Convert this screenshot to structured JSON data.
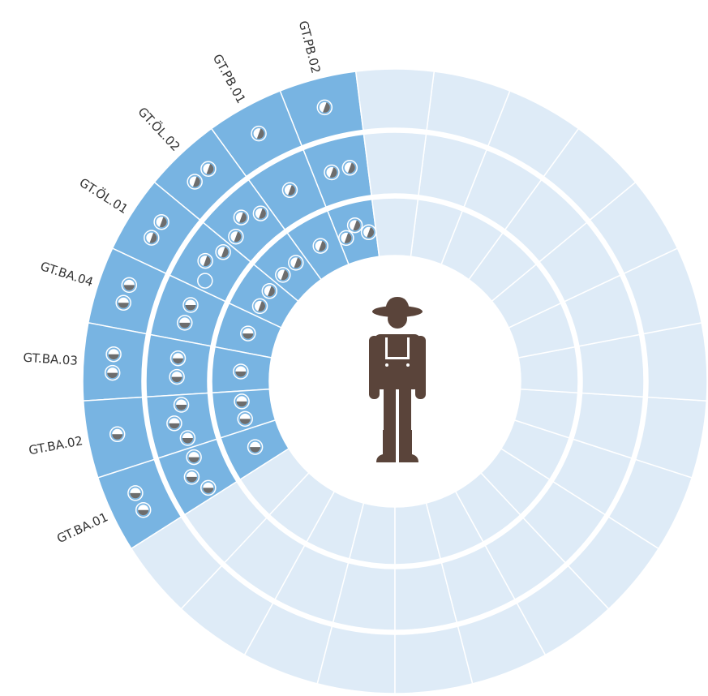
{
  "segments": [
    {
      "label": "GT.PB.02",
      "icons": {
        "outer": [
          "v"
        ],
        "middle": [
          "v",
          "v"
        ],
        "inner": [
          "v",
          "v",
          "v"
        ]
      }
    },
    {
      "label": "GT.PB.01",
      "icons": {
        "outer": [
          "v"
        ],
        "middle": [
          "v"
        ],
        "inner": [
          "v"
        ]
      }
    },
    {
      "label": "GT.ÖL.02",
      "icons": {
        "outer": [
          "v",
          "v"
        ],
        "middle": [
          "v",
          "v",
          "v"
        ],
        "inner": [
          "v",
          "v"
        ]
      }
    },
    {
      "label": "GT.ÖL.01",
      "icons": {
        "outer": [
          "v",
          "v"
        ],
        "middle": [
          "empty",
          "v",
          "v"
        ],
        "inner": [
          "v",
          "v"
        ]
      }
    },
    {
      "label": "GT.BA.04",
      "icons": {
        "outer": [
          "h",
          "h"
        ],
        "middle": [
          "h",
          "h"
        ],
        "inner": [
          "h"
        ]
      }
    },
    {
      "label": "GT.BA.03",
      "icons": {
        "outer": [
          "h",
          "h"
        ],
        "middle": [
          "h",
          "h"
        ],
        "inner": [
          "h"
        ]
      }
    },
    {
      "label": "GT.BA.02",
      "icons": {
        "outer": [
          "h"
        ],
        "middle": [
          "h",
          "h",
          "h"
        ],
        "inner": [
          "h",
          "h"
        ]
      }
    },
    {
      "label": "GT.BA.01",
      "icons": {
        "outer": [
          "h",
          "h"
        ],
        "middle": [
          "h",
          "h",
          "h"
        ],
        "inner": [
          "h"
        ]
      }
    }
  ]
}
